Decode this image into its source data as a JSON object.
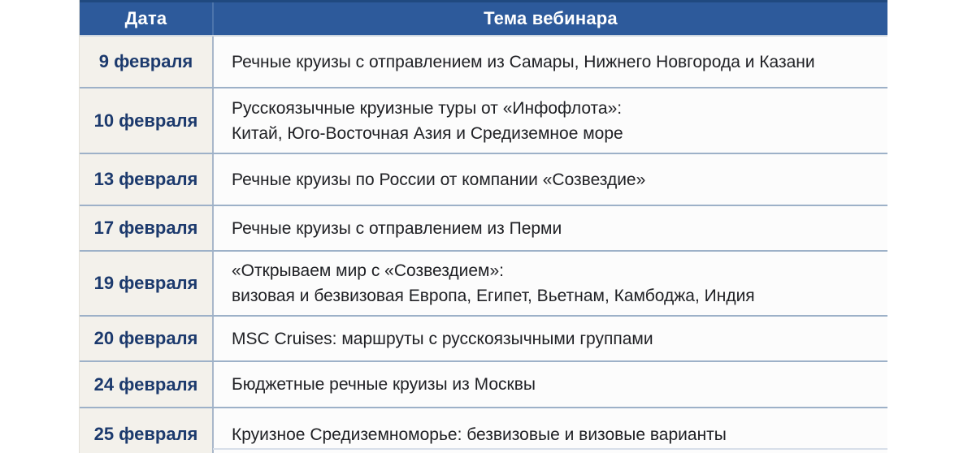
{
  "table": {
    "headers": {
      "date": "Дата",
      "topic": "Тема вебинара"
    },
    "rows": [
      {
        "date": "9 февраля",
        "lines": [
          "Речные круизы с отправлением из Самары, Нижнего Новгорода и Казани"
        ]
      },
      {
        "date": "10 февраля",
        "lines": [
          "Русскоязычные круизные туры от «Инфофлота»:",
          "Китай, Юго-Восточная Азия и Средиземное море"
        ]
      },
      {
        "date": "13 февраля",
        "lines": [
          "Речные круизы по России от компании «Созвездие»"
        ]
      },
      {
        "date": "17 февраля",
        "lines": [
          "Речные круизы с отправлением из Перми"
        ]
      },
      {
        "date": "19 февраля",
        "lines": [
          "«Открываем мир с «Созвездием»:",
          "визовая и безвизовая Европа, Египет, Вьетнам, Камбоджа, Индия"
        ]
      },
      {
        "date": "20 февраля",
        "lines": [
          "MSC Cruises: маршруты с русскоязычными группами"
        ]
      },
      {
        "date": "24 февраля",
        "lines": [
          "Бюджетные речные круизы из Москвы"
        ]
      },
      {
        "date": "25 февраля",
        "lines": [
          "Круизное Средиземноморье: безвизовые и визовые варианты"
        ]
      }
    ],
    "colors": {
      "header_bg": "#2d5a9b",
      "header_text": "#ffffff",
      "date_cell_bg": "#f3f1eb",
      "date_text": "#1c3a6d",
      "topic_cell_bg": "#fcfcfc",
      "topic_text": "#202125",
      "row_border": "#9db1c8",
      "column_divider": "#a9b7ca"
    }
  }
}
